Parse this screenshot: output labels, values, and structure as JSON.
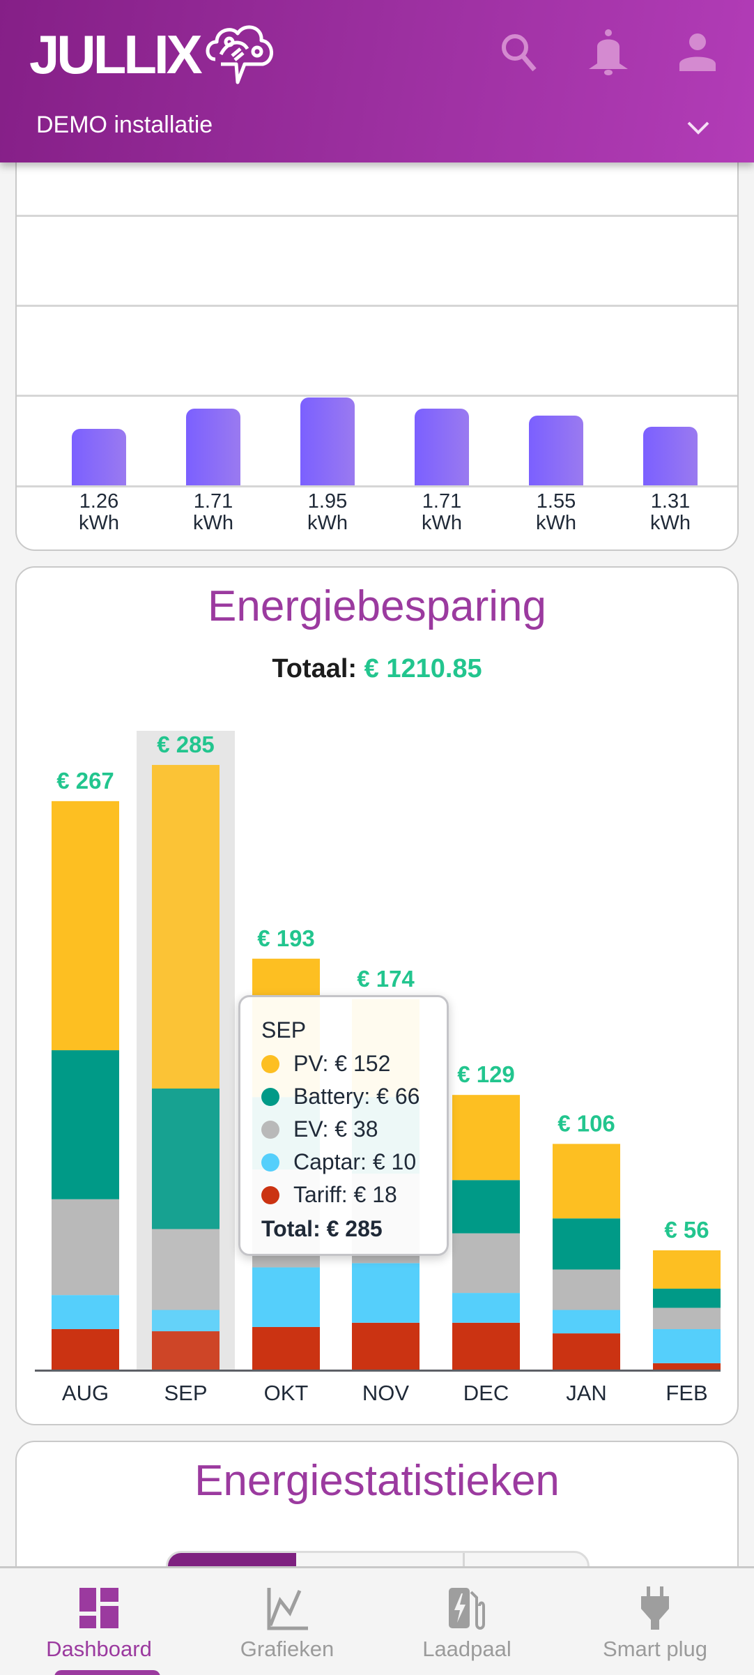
{
  "header": {
    "logo_text": "JULLIX",
    "installation": "DEMO installatie",
    "icons": [
      "search-icon",
      "bell-icon",
      "person-icon",
      "chevron-down-icon"
    ],
    "brand_color": "#9b3a9f"
  },
  "kwh_chart": {
    "values": [
      1.26,
      1.71,
      1.95,
      1.71,
      1.55,
      1.31
    ],
    "labels": [
      {
        "value": "1.26",
        "unit": "kWh"
      },
      {
        "value": "1.71",
        "unit": "kWh"
      },
      {
        "value": "1.95",
        "unit": "kWh"
      },
      {
        "value": "1.71",
        "unit": "kWh"
      },
      {
        "value": "1.55",
        "unit": "kWh"
      },
      {
        "value": "1.31",
        "unit": "kWh"
      }
    ],
    "gridlines": [
      2,
      4,
      6
    ],
    "bar_color": "#7b60ff"
  },
  "savings": {
    "title": "Energiebesparing",
    "total_label": "Totaal:",
    "total_value": "€ 1210.85",
    "tooltip": {
      "month": "SEP",
      "rows": [
        {
          "label": "PV: € 152",
          "color": "#fdbf22"
        },
        {
          "label": "Battery: € 66",
          "color": "#009a87"
        },
        {
          "label": "EV: € 38",
          "color": "#b9b9b9"
        },
        {
          "label": "Captar: € 10",
          "color": "#55cffb"
        },
        {
          "label": "Tariff: € 18",
          "color": "#cb3312"
        }
      ],
      "total": "Total: € 285"
    }
  },
  "chart_data": {
    "type": "bar",
    "stacked": true,
    "title": "Energiebesparing",
    "subtitle": "Totaal: € 1210.85",
    "categories": [
      "AUG",
      "SEP",
      "OKT",
      "NOV",
      "DEC",
      "JAN",
      "FEB"
    ],
    "series": [
      {
        "name": "PV",
        "color": "#fdbf22",
        "values": [
          117,
          152,
          65,
          46,
          40,
          35,
          18
        ]
      },
      {
        "name": "Battery",
        "color": "#009a87",
        "values": [
          70,
          66,
          34,
          36,
          25,
          24,
          9
        ]
      },
      {
        "name": "EV",
        "color": "#b9b9b9",
        "values": [
          45,
          38,
          46,
          42,
          28,
          19,
          10
        ]
      },
      {
        "name": "Captar",
        "color": "#55cffb",
        "values": [
          16,
          10,
          28,
          28,
          14,
          11,
          16
        ]
      },
      {
        "name": "Tariff",
        "color": "#cb3312",
        "values": [
          19,
          18,
          20,
          22,
          22,
          17,
          3
        ]
      }
    ],
    "totals": [
      "€ 267",
      "€ 285",
      "€ 193",
      "€ 174",
      "€ 129",
      "€ 106",
      "€ 56"
    ],
    "highlighted": "SEP",
    "xlabel": "",
    "ylabel": "",
    "ylim": [
      0,
      285
    ],
    "grid": false,
    "label_color": "#22c58e"
  },
  "stats": {
    "title": "Energiestatistieken"
  },
  "bottom_nav": {
    "items": [
      {
        "label": "Dashboard",
        "icon": "dashboard-icon",
        "active": true
      },
      {
        "label": "Grafieken",
        "icon": "line-chart-icon",
        "active": false
      },
      {
        "label": "Laadpaal",
        "icon": "ev-charger-icon",
        "active": false
      },
      {
        "label": "Smart plug",
        "icon": "plug-icon",
        "active": false
      }
    ]
  }
}
